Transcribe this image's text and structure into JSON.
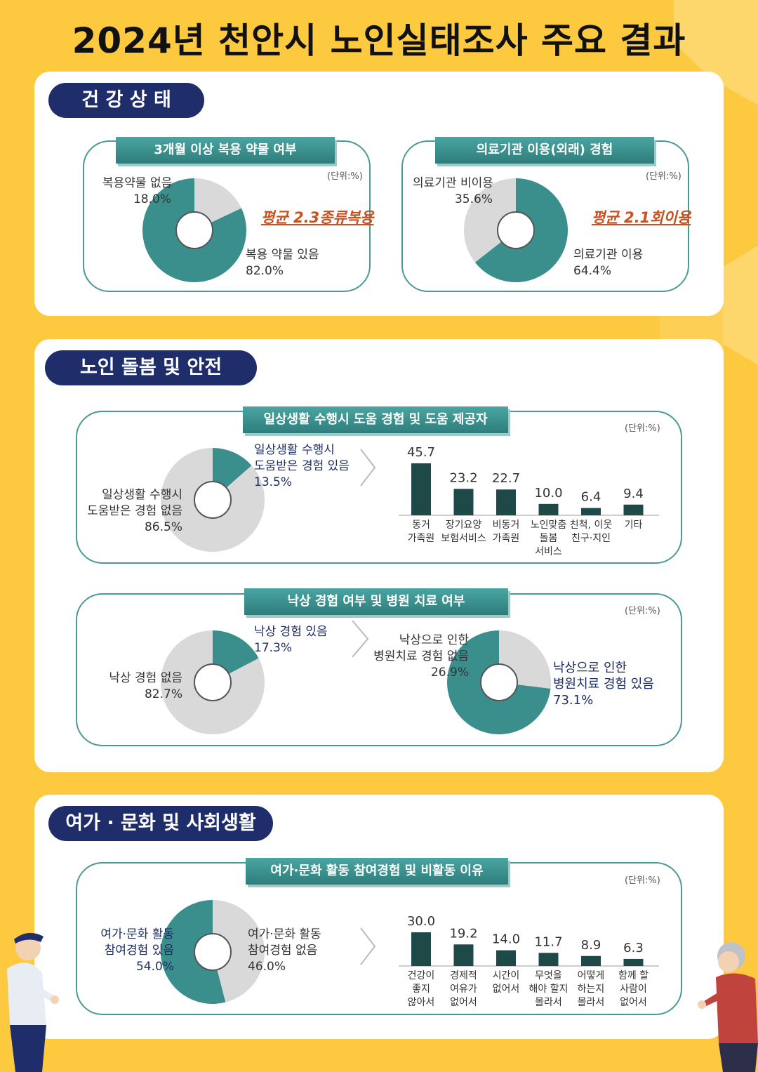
{
  "title": "2024년 천안시 노인실태조사 주요 결과",
  "colors": {
    "background": "#fcc93f",
    "pill": "#1f2e6b",
    "teal": "#3a8f8d",
    "grey": "#d9d9d9",
    "bar": "#1f4848"
  },
  "sections": {
    "health": {
      "label": "건 강 상 태"
    },
    "care": {
      "label": "노인 돌봄 및 안전"
    },
    "leisure": {
      "label": "여가 · 문화 및 사회생활"
    }
  },
  "chart_data": [
    {
      "id": "medication",
      "type": "pie",
      "title": "3개월 이상 복용 약물 여부",
      "unit": "(단위:%)",
      "note": "평균 2.3종류복용",
      "slices": [
        {
          "label": "복용 약물 있음",
          "value": 82.0,
          "value_text": "82.0%"
        },
        {
          "label": "복용약물 없음",
          "value": 18.0,
          "value_text": "18.0%"
        }
      ]
    },
    {
      "id": "medical",
      "type": "pie",
      "title": "의료기관 이용(외래) 경험",
      "unit": "(단위:%)",
      "note": "평균 2.1회이용",
      "slices": [
        {
          "label": "의료기관 이용",
          "value": 64.4,
          "value_text": "64.4%"
        },
        {
          "label": "의료기관 비이용",
          "value": 35.6,
          "value_text": "35.6%"
        }
      ]
    },
    {
      "id": "daily-help",
      "type": "pie",
      "title": "일상생활 수행시 도움 경험 및 도움 제공자",
      "unit": "(단위:%)",
      "slices": [
        {
          "label_lines": [
            "일상생활 수행시",
            "도움받은 경험 있음"
          ],
          "value": 13.5,
          "value_text": "13.5%"
        },
        {
          "label_lines": [
            "일상생활 수행시",
            "도움받은 경험 없음"
          ],
          "value": 86.5,
          "value_text": "86.5%"
        }
      ]
    },
    {
      "id": "help-providers",
      "type": "bar",
      "categories": [
        [
          "동거",
          "가족원"
        ],
        [
          "장기요양",
          "보험서비스"
        ],
        [
          "비동거",
          "가족원"
        ],
        [
          "노인맞춤",
          "돌봄",
          "서비스"
        ],
        [
          "친척, 이웃",
          "친구·지인"
        ],
        [
          "기타"
        ]
      ],
      "values": [
        45.7,
        23.2,
        22.7,
        10.0,
        6.4,
        9.4
      ],
      "value_labels": [
        "45.7",
        "23.2",
        "22.7",
        "10.0",
        "6.4",
        "9.4"
      ]
    },
    {
      "id": "fall",
      "type": "pie",
      "title": "낙상 경험 여부 및 병원 치료 여부",
      "unit": "(단위:%)",
      "slices": [
        {
          "label": "낙상 경험 있음",
          "value": 17.3,
          "value_text": "17.3%"
        },
        {
          "label": "낙상 경험 없음",
          "value": 82.7,
          "value_text": "82.7%"
        }
      ]
    },
    {
      "id": "fall-treatment",
      "type": "pie",
      "slices": [
        {
          "label_lines": [
            "낙상으로 인한",
            "병원치료 경험 있음"
          ],
          "value": 73.1,
          "value_text": "73.1%"
        },
        {
          "label_lines": [
            "낙상으로 인한",
            "병원치료 경험 없음"
          ],
          "value": 26.9,
          "value_text": "26.9%"
        }
      ]
    },
    {
      "id": "leisure",
      "type": "pie",
      "title": "여가·문화 활동 참여경험 및 비활동 이유",
      "unit": "(단위:%)",
      "slices": [
        {
          "label_lines": [
            "여가·문화 활동",
            "참여경험 있음"
          ],
          "value": 54.0,
          "value_text": "54.0%"
        },
        {
          "label_lines": [
            "여가·문화 활동",
            "참여경험 없음"
          ],
          "value": 46.0,
          "value_text": "46.0%"
        }
      ]
    },
    {
      "id": "non-activity-reasons",
      "type": "bar",
      "categories": [
        [
          "건강이",
          "좋지",
          "않아서"
        ],
        [
          "경제적",
          "여유가",
          "없어서"
        ],
        [
          "시간이",
          "없어서"
        ],
        [
          "무엇을",
          "해야 할지",
          "몰라서"
        ],
        [
          "어떻게",
          "하는지",
          "몰라서"
        ],
        [
          "함께 할",
          "사람이",
          "없어서"
        ]
      ],
      "values": [
        30.0,
        19.2,
        14.0,
        11.7,
        8.9,
        6.3
      ],
      "value_labels": [
        "30.0",
        "19.2",
        "14.0",
        "11.7",
        "8.9",
        "6.3"
      ]
    }
  ]
}
